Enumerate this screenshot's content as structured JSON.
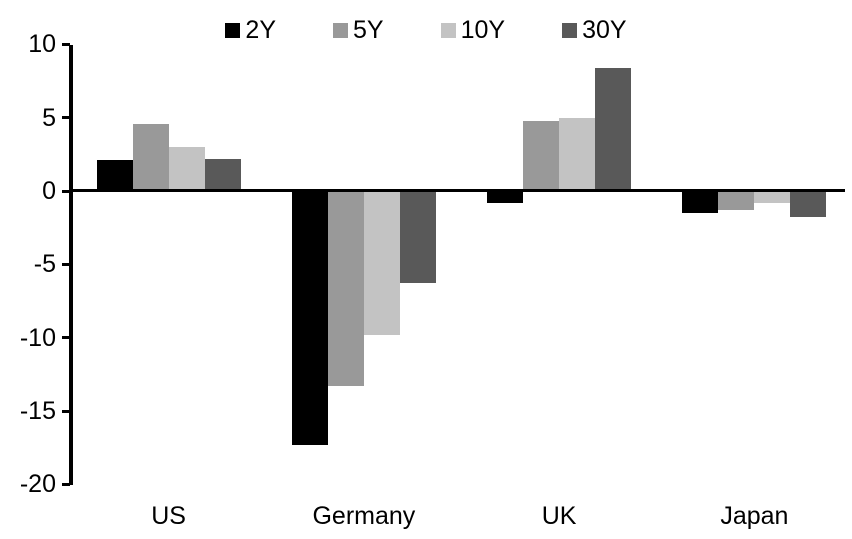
{
  "chart_data": {
    "type": "bar",
    "title": "",
    "xlabel": "",
    "ylabel": "",
    "categories": [
      "US",
      "Germany",
      "UK",
      "Japan"
    ],
    "series": [
      {
        "name": "2Y",
        "color": "#000000",
        "values": [
          2.1,
          -17.3,
          -0.8,
          -1.5
        ]
      },
      {
        "name": "5Y",
        "color": "#999999",
        "values": [
          4.6,
          -13.3,
          4.8,
          -1.3
        ]
      },
      {
        "name": "10Y",
        "color": "#c3c3c3",
        "values": [
          3.0,
          -9.8,
          5.0,
          -0.8
        ]
      },
      {
        "name": "30Y",
        "color": "#595959",
        "values": [
          2.2,
          -6.3,
          8.4,
          -1.8
        ]
      }
    ],
    "y_ticks": [
      10,
      5,
      0,
      -5,
      -10,
      -15,
      -20
    ],
    "ylim": [
      -20,
      10
    ],
    "grid": false,
    "legend_position": "top-center",
    "axis_color": "#000000",
    "background_color": "#ffffff"
  }
}
